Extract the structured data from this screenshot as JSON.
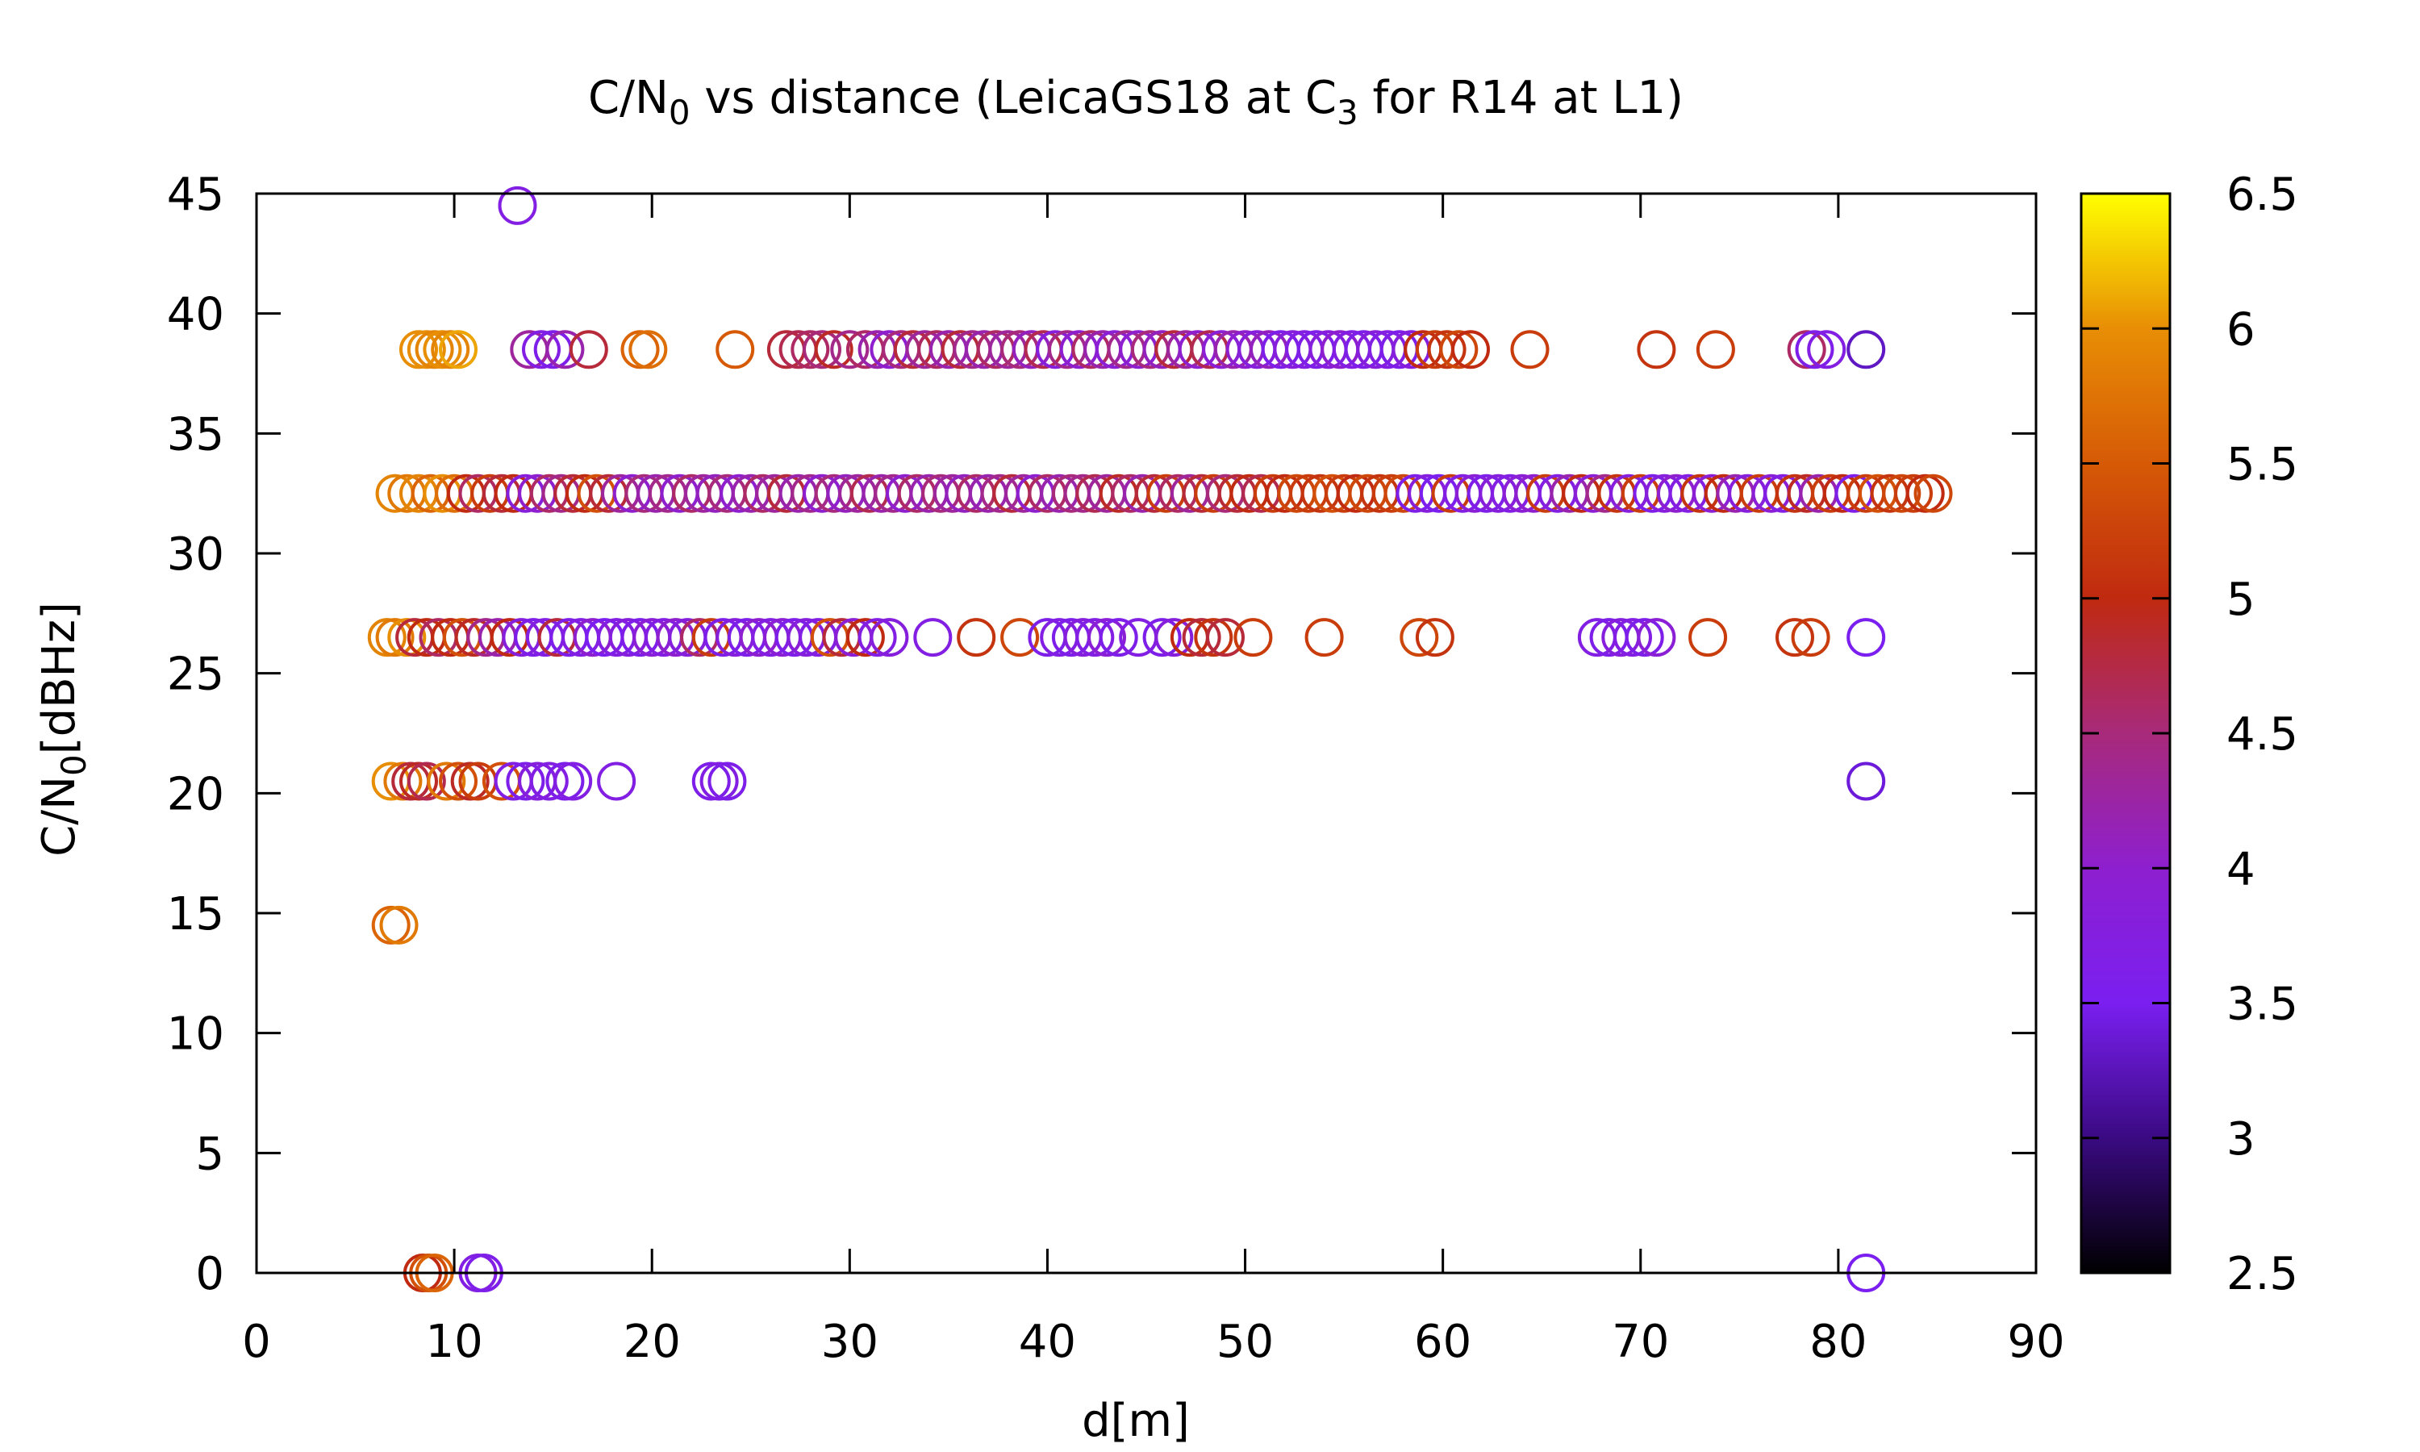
{
  "chart_data": {
    "type": "scatter",
    "title": "C/N",
    "title_sub": "0",
    "title_rest": " vs distance (LeicaGS18 at C",
    "title_sub2": "3",
    "title_end": " for R14 at L1)",
    "xlabel": "d[m]",
    "ylabel": "C/N",
    "ylabel_sub": "0",
    "ylabel_rest": "[dBHz]",
    "xlim": [
      0,
      90
    ],
    "ylim": [
      0,
      45
    ],
    "xticks": [
      "0",
      "10",
      "20",
      "30",
      "40",
      "50",
      "60",
      "70",
      "80",
      "90"
    ],
    "yticks": [
      "0",
      "5",
      "10",
      "15",
      "20",
      "25",
      "30",
      "35",
      "40",
      "45"
    ],
    "colorbar": {
      "range": [
        2.5,
        6.5
      ],
      "ticks": [
        "2.5",
        "3",
        "3.5",
        "4",
        "4.5",
        "5",
        "5.5",
        "6",
        "6.5"
      ],
      "palette": [
        "#000000",
        "#3a0a82",
        "#7a1ff0",
        "#8e1fcf",
        "#a82a7a",
        "#c02a10",
        "#d65a06",
        "#e88e05",
        "#ffff00"
      ]
    },
    "marker": "open-circle",
    "series": [
      {
        "y": 44.5,
        "x": [
          13.2
        ],
        "c": [
          3.7
        ]
      },
      {
        "y": 38.5,
        "x": [
          8.2,
          8.6,
          9.0,
          9.4,
          9.8,
          10.2,
          13.8,
          14.4,
          15.0,
          15.6,
          16.8,
          19.4,
          19.8,
          24.2,
          26.8,
          27.4,
          28.0,
          28.6,
          29.2,
          30.0,
          30.8,
          31.4,
          32.0,
          32.6,
          33.2,
          33.8,
          34.4,
          35.0,
          35.6,
          36.2,
          36.8,
          37.4,
          38.0,
          38.6,
          39.2,
          39.8,
          40.4,
          41.0,
          41.6,
          42.2,
          42.8,
          43.4,
          44.0,
          44.6,
          45.2,
          45.8,
          46.4,
          47.0,
          47.6,
          48.2,
          48.8,
          49.4,
          50.0,
          50.6,
          51.2,
          51.8,
          52.4,
          53.0,
          53.6,
          54.2,
          54.8,
          55.4,
          56.0,
          56.6,
          57.2,
          57.8,
          58.4,
          59.0,
          59.6,
          60.2,
          60.8,
          61.4,
          64.4,
          70.8,
          73.8,
          78.4,
          78.8,
          79.4,
          81.4
        ],
        "c": [
          6.0,
          6.0,
          5.9,
          6.0,
          5.9,
          6.1,
          4.3,
          3.7,
          3.6,
          4.2,
          4.8,
          5.6,
          5.7,
          5.5,
          4.8,
          4.7,
          4.6,
          4.5,
          4.9,
          4.4,
          4.6,
          4.2,
          4.0,
          4.5,
          4.8,
          4.3,
          4.6,
          4.2,
          4.8,
          4.4,
          4.2,
          4.6,
          4.3,
          4.5,
          4.1,
          4.7,
          3.8,
          4.4,
          4.0,
          4.6,
          4.2,
          3.9,
          4.4,
          4.0,
          4.5,
          4.1,
          4.8,
          4.3,
          4.0,
          4.7,
          3.9,
          4.2,
          4.0,
          3.8,
          4.1,
          3.6,
          3.8,
          3.7,
          3.6,
          3.8,
          4.0,
          3.7,
          3.6,
          3.8,
          3.7,
          3.6,
          3.8,
          5.0,
          5.2,
          5.1,
          5.3,
          5.0,
          5.2,
          5.1,
          5.2,
          4.6,
          3.6,
          3.7,
          3.3
        ]
      },
      {
        "y": 32.5,
        "x": [
          7.0,
          7.6,
          8.2,
          8.8,
          9.4,
          10.0,
          10.6,
          11.2,
          11.8,
          12.4,
          13.0,
          13.6,
          14.2,
          14.8,
          15.4,
          16.0,
          16.6,
          17.2,
          17.8,
          18.4,
          19.0,
          19.6,
          20.2,
          20.8,
          21.4,
          22.0,
          22.6,
          23.2,
          23.8,
          24.4,
          25.0,
          25.6,
          26.2,
          26.8,
          27.4,
          28.0,
          28.6,
          29.2,
          29.8,
          30.4,
          31.0,
          31.6,
          32.2,
          32.8,
          33.4,
          34.0,
          34.6,
          35.2,
          35.8,
          36.4,
          37.0,
          37.6,
          38.2,
          38.8,
          39.4,
          40.0,
          40.6,
          41.2,
          41.8,
          42.4,
          43.0,
          43.6,
          44.2,
          44.8,
          45.4,
          46.0,
          46.6,
          47.2,
          47.8,
          48.4,
          49.0,
          49.6,
          50.2,
          50.8,
          51.4,
          52.0,
          52.6,
          53.2,
          53.8,
          54.4,
          55.0,
          55.6,
          56.2,
          56.8,
          57.4,
          58.0,
          58.6,
          59.2,
          59.8,
          60.4,
          61.0,
          61.6,
          62.2,
          62.8,
          63.4,
          64.0,
          64.6,
          65.2,
          65.8,
          66.4,
          67.0,
          67.6,
          68.2,
          68.8,
          69.4,
          70.0,
          70.6,
          71.2,
          71.8,
          72.4,
          73.0,
          73.6,
          74.2,
          74.8,
          75.4,
          76.0,
          76.6,
          77.2,
          77.8,
          78.4,
          79.0,
          79.6,
          80.2,
          80.8,
          81.4,
          82.0,
          82.6,
          83.2,
          83.8,
          84.4,
          84.8
        ],
        "c": [
          5.9,
          5.8,
          5.9,
          5.6,
          6.0,
          5.7,
          5.0,
          4.6,
          5.2,
          4.8,
          5.0,
          3.8,
          4.0,
          4.6,
          4.4,
          4.8,
          5.0,
          5.4,
          4.8,
          4.3,
          4.0,
          4.5,
          4.2,
          4.4,
          4.0,
          4.6,
          4.3,
          4.1,
          4.5,
          4.0,
          4.2,
          4.6,
          4.3,
          4.8,
          4.2,
          4.4,
          4.0,
          4.5,
          4.1,
          4.3,
          4.7,
          4.2,
          4.4,
          4.0,
          4.6,
          4.2,
          4.5,
          4.3,
          4.1,
          4.6,
          4.2,
          4.4,
          4.8,
          4.3,
          4.0,
          4.6,
          4.2,
          4.5,
          4.4,
          4.7,
          4.3,
          4.9,
          4.6,
          4.2,
          4.8,
          5.2,
          4.6,
          4.3,
          4.8,
          5.2,
          4.5,
          4.8,
          5.0,
          4.7,
          5.2,
          5.0,
          5.3,
          5.2,
          5.1,
          5.4,
          5.2,
          5.0,
          5.3,
          5.1,
          5.2,
          5.3,
          3.6,
          3.8,
          3.5,
          5.2,
          3.7,
          3.9,
          3.6,
          3.8,
          3.7,
          3.9,
          4.0,
          5.2,
          3.7,
          4.2,
          5.0,
          3.9,
          4.4,
          5.1,
          3.8,
          5.2,
          3.6,
          3.8,
          4.0,
          3.7,
          5.1,
          3.9,
          5.0,
          4.2,
          3.8,
          5.2,
          3.9,
          3.7,
          5.1,
          4.9,
          4.2,
          5.2,
          5.0,
          3.6,
          5.2,
          5.4,
          5.1,
          5.3,
          5.2,
          5.0,
          5.3
        ]
      },
      {
        "y": 26.5,
        "x": [
          6.6,
          7.0,
          7.6,
          8.0,
          8.6,
          9.2,
          9.8,
          10.4,
          11.0,
          11.6,
          12.2,
          12.8,
          13.4,
          14.0,
          14.6,
          15.2,
          15.8,
          16.4,
          17.0,
          17.6,
          18.2,
          18.8,
          19.4,
          20.0,
          20.6,
          21.2,
          21.8,
          22.4,
          23.0,
          23.6,
          24.2,
          24.8,
          25.4,
          26.0,
          26.6,
          27.2,
          27.8,
          28.4,
          29.0,
          29.6,
          30.2,
          30.8,
          31.4,
          32.0,
          34.2,
          36.4,
          38.6,
          40.0,
          40.6,
          41.2,
          41.8,
          42.4,
          43.0,
          43.6,
          44.6,
          45.8,
          46.4,
          47.2,
          47.8,
          48.4,
          49.0,
          50.4,
          54.0,
          58.8,
          59.6,
          67.8,
          68.4,
          69.0,
          69.6,
          70.2,
          70.8,
          73.4,
          77.8,
          78.6,
          81.4
        ],
        "c": [
          5.9,
          5.8,
          6.0,
          4.8,
          5.0,
          4.6,
          5.0,
          5.4,
          4.9,
          4.4,
          4.2,
          5.0,
          3.8,
          3.6,
          3.7,
          4.8,
          3.6,
          3.7,
          4.0,
          3.5,
          3.7,
          3.8,
          3.6,
          3.9,
          3.7,
          4.0,
          3.8,
          4.6,
          5.2,
          3.6,
          3.8,
          3.6,
          4.0,
          3.7,
          3.9,
          3.6,
          3.8,
          3.7,
          5.4,
          4.8,
          3.9,
          5.0,
          3.7,
          3.8,
          3.7,
          5.1,
          5.3,
          3.6,
          3.7,
          3.6,
          3.8,
          3.7,
          3.9,
          3.6,
          3.7,
          3.6,
          3.8,
          5.0,
          4.8,
          5.1,
          4.8,
          5.2,
          5.2,
          5.3,
          5.1,
          3.7,
          3.6,
          3.8,
          3.7,
          3.6,
          3.9,
          5.2,
          5.1,
          5.2,
          3.5
        ]
      },
      {
        "y": 20.5,
        "x": [
          6.8,
          7.4,
          7.8,
          8.2,
          8.6,
          9.6,
          10.2,
          10.8,
          11.2,
          12.4,
          13.0,
          13.6,
          14.2,
          14.8,
          15.6,
          16.0,
          18.2,
          23.0,
          23.4,
          23.8,
          81.4
        ],
        "c": [
          6.0,
          5.8,
          4.8,
          4.9,
          4.7,
          5.8,
          5.4,
          4.9,
          5.2,
          5.4,
          3.7,
          3.6,
          3.8,
          3.7,
          3.6,
          3.7,
          3.7,
          3.6,
          3.7,
          3.6,
          3.4
        ]
      },
      {
        "y": 14.5,
        "x": [
          6.8,
          7.2
        ],
        "c": [
          5.6,
          5.8
        ]
      },
      {
        "y": 0,
        "x": [
          8.4,
          8.7,
          9.0,
          11.2,
          11.5,
          81.4
        ],
        "c": [
          5.0,
          5.4,
          5.6,
          3.7,
          3.6,
          3.5
        ]
      }
    ]
  }
}
